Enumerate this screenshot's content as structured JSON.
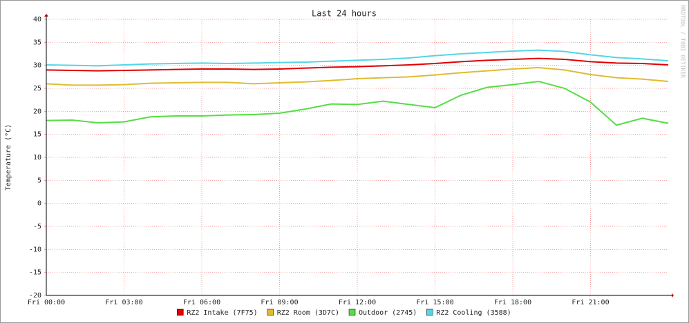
{
  "chart_data": {
    "type": "line",
    "title": "Last 24 hours",
    "y_label": "Temperature (°C)",
    "watermark": "RRDTOOL / TOBI OETIKER",
    "x": [
      0,
      1,
      2,
      3,
      4,
      5,
      6,
      7,
      8,
      9,
      10,
      11,
      12,
      13,
      14,
      15,
      16,
      17,
      18,
      19,
      20,
      21,
      22,
      23,
      24
    ],
    "xlim": [
      0,
      24
    ],
    "xticks": [
      {
        "value": 0,
        "label": "Fri 00:00"
      },
      {
        "value": 3,
        "label": "Fri 03:00"
      },
      {
        "value": 6,
        "label": "Fri 06:00"
      },
      {
        "value": 9,
        "label": "Fri 09:00"
      },
      {
        "value": 12,
        "label": "Fri 12:00"
      },
      {
        "value": 15,
        "label": "Fri 15:00"
      },
      {
        "value": 18,
        "label": "Fri 18:00"
      },
      {
        "value": 21,
        "label": "Fri 21:00"
      }
    ],
    "ylim": [
      -20,
      40
    ],
    "yticks": [
      -20,
      -15,
      -10,
      -5,
      0,
      5,
      10,
      15,
      20,
      25,
      30,
      35,
      40
    ],
    "grid": true,
    "series": [
      {
        "name": "RZ2 Intake (7F75)",
        "color": "#e00000",
        "values": [
          29.0,
          28.9,
          28.8,
          28.9,
          29.0,
          29.1,
          29.2,
          29.2,
          29.1,
          29.2,
          29.4,
          29.6,
          29.7,
          29.9,
          30.1,
          30.4,
          30.8,
          31.1,
          31.3,
          31.5,
          31.3,
          30.8,
          30.5,
          30.4,
          30.1
        ]
      },
      {
        "name": "RZ2 Room (3D7C)",
        "color": "#e0bb30",
        "values": [
          26.0,
          25.7,
          25.7,
          25.8,
          26.1,
          26.2,
          26.3,
          26.3,
          26.0,
          26.2,
          26.4,
          26.7,
          27.1,
          27.3,
          27.5,
          27.9,
          28.4,
          28.8,
          29.2,
          29.5,
          29.0,
          28.0,
          27.3,
          27.0,
          26.5
        ]
      },
      {
        "name": "Outdoor (2745)",
        "color": "#55dd44",
        "values": [
          18.0,
          18.1,
          17.5,
          17.7,
          18.8,
          19.0,
          19.0,
          19.2,
          19.3,
          19.6,
          20.5,
          21.6,
          21.5,
          22.2,
          21.5,
          20.8,
          23.5,
          25.2,
          25.8,
          26.5,
          25.0,
          22.0,
          17.0,
          18.5,
          17.4
        ]
      },
      {
        "name": "RZ2 Cooling (3588)",
        "color": "#55d5e5",
        "values": [
          30.1,
          30.0,
          29.9,
          30.1,
          30.3,
          30.4,
          30.5,
          30.4,
          30.5,
          30.6,
          30.7,
          30.9,
          31.1,
          31.3,
          31.6,
          32.1,
          32.5,
          32.8,
          33.1,
          33.3,
          33.0,
          32.3,
          31.7,
          31.4,
          31.0
        ]
      }
    ]
  }
}
